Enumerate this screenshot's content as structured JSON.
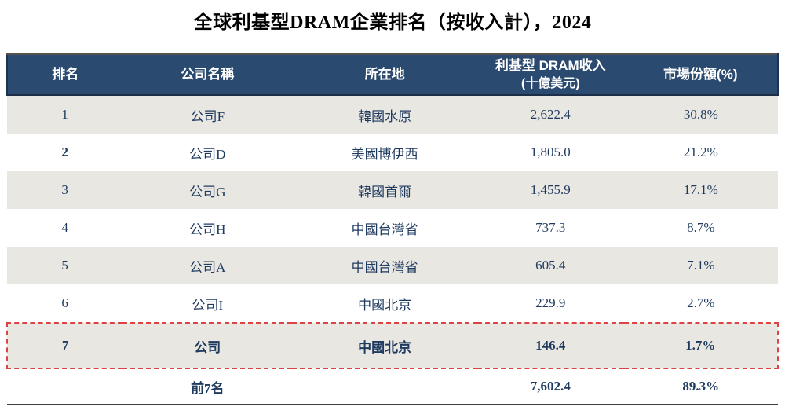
{
  "title": "全球利基型DRAM企業排名（按收入計），2024",
  "table": {
    "headers": {
      "rank": "排名",
      "company": "公司名稱",
      "location": "所在地",
      "revenue_line1": "利基型 DRAM收入",
      "revenue_line2": "(十億美元)",
      "share": "市場份額(%)"
    },
    "rows": [
      {
        "rank": "1",
        "company": "公司F",
        "location": "韓國水原",
        "revenue": "2,622.4",
        "share": "30.8%"
      },
      {
        "rank": "2",
        "company": "公司D",
        "location": "美國博伊西",
        "revenue": "1,805.0",
        "share": "21.2%"
      },
      {
        "rank": "3",
        "company": "公司G",
        "location": "韓國首爾",
        "revenue": "1,455.9",
        "share": "17.1%"
      },
      {
        "rank": "4",
        "company": "公司H",
        "location": "中國台灣省",
        "revenue": "737.3",
        "share": "8.7%"
      },
      {
        "rank": "5",
        "company": "公司A",
        "location": "中國台灣省",
        "revenue": "605.4",
        "share": "7.1%"
      },
      {
        "rank": "6",
        "company": "公司I",
        "location": "中國北京",
        "revenue": "229.9",
        "share": "2.7%"
      },
      {
        "rank": "7",
        "company": "公司",
        "location": "中國北京",
        "revenue": "146.4",
        "share": "1.7%"
      }
    ],
    "total": {
      "label": "前7名",
      "revenue": "7,602.4",
      "share": "89.3%"
    },
    "colors": {
      "header_bg": "#2b4a6f",
      "stripe_bg": "#e9e7e1",
      "body_text": "#1e3a5f",
      "highlight_border": "#dd4343",
      "bottom_rule": "#3f3f3f"
    }
  }
}
